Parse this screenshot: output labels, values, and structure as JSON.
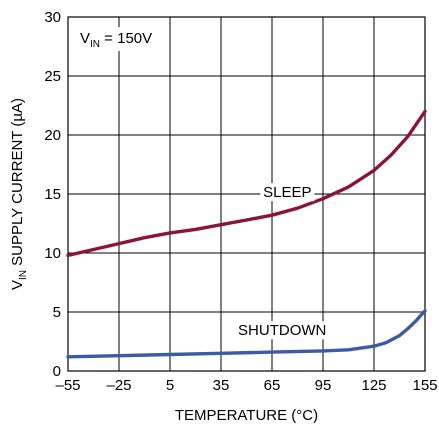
{
  "chart_data": {
    "type": "line",
    "annotation": {
      "prefix": "V",
      "subscript": "IN",
      "suffix": " = 150V"
    },
    "ylabel": {
      "prefix": "V",
      "subscript": "IN",
      "suffix": " SUPPLY CURRENT (µA)"
    },
    "xlabel": "TEMPERATURE (°C)",
    "xlim": [
      -55,
      155
    ],
    "ylim": [
      0,
      30
    ],
    "x_ticks": [
      "–55",
      "–25",
      "5",
      "35",
      "65",
      "95",
      "125",
      "155"
    ],
    "y_ticks": [
      "0",
      "5",
      "10",
      "15",
      "20",
      "25",
      "30"
    ],
    "grid": true,
    "series": [
      {
        "name": "SLEEP",
        "color": "#8a1538",
        "x": [
          -55,
          -40,
          -25,
          -10,
          5,
          20,
          35,
          50,
          65,
          80,
          95,
          110,
          125,
          135,
          145,
          155
        ],
        "y": [
          9.8,
          10.3,
          10.8,
          11.3,
          11.7,
          12.0,
          12.4,
          12.8,
          13.2,
          13.8,
          14.6,
          15.6,
          17.0,
          18.3,
          19.9,
          22.0
        ]
      },
      {
        "name": "SHUTDOWN",
        "color": "#3b5ba5",
        "x": [
          -55,
          -25,
          5,
          35,
          65,
          95,
          110,
          125,
          132,
          140,
          145,
          150,
          155
        ],
        "y": [
          1.2,
          1.3,
          1.4,
          1.5,
          1.6,
          1.7,
          1.8,
          2.1,
          2.4,
          3.0,
          3.6,
          4.3,
          5.1
        ]
      }
    ],
    "series_labels": [
      {
        "text": "SLEEP",
        "x": 74,
        "y": 14.9
      },
      {
        "text": "SHUTDOWN",
        "x": 71,
        "y": 3.2
      }
    ]
  }
}
